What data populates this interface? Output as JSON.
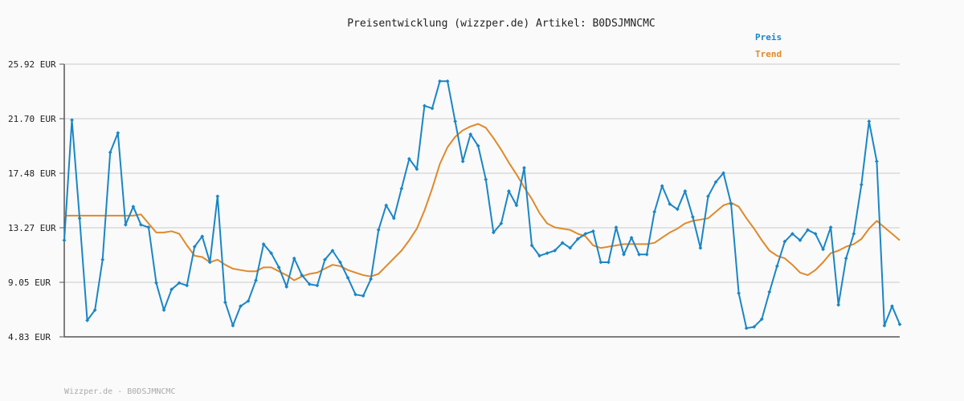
{
  "chart_data": {
    "type": "line",
    "title": "Preisentwicklung (wizzper.de) Artikel: B0DSJMNCMC",
    "xlabel": "",
    "ylabel": "",
    "ylim": [
      4.83,
      25.92
    ],
    "y_ticks": [
      "25.92 EUR",
      "21.70 EUR",
      "17.48 EUR",
      "13.27 EUR",
      "9.05 EUR",
      "4.83 EUR"
    ],
    "grid": true,
    "legend_position": "top-right",
    "series": [
      {
        "name": "Preis",
        "color": "#1a86c6",
        "marker": "diamond",
        "values": [
          12.3,
          21.6,
          14.0,
          6.1,
          6.9,
          10.8,
          19.1,
          20.6,
          13.5,
          14.9,
          13.5,
          13.3,
          9.0,
          6.9,
          8.5,
          9.0,
          8.8,
          11.8,
          12.6,
          10.6,
          15.7,
          7.5,
          5.7,
          7.2,
          7.6,
          9.2,
          12.0,
          11.3,
          10.2,
          8.7,
          10.9,
          9.6,
          8.9,
          8.8,
          10.8,
          11.5,
          10.6,
          9.4,
          8.1,
          8.0,
          9.3,
          13.1,
          15.0,
          14.0,
          16.3,
          18.6,
          17.8,
          22.7,
          22.5,
          24.6,
          24.6,
          21.5,
          18.4,
          20.5,
          19.6,
          17.0,
          12.9,
          13.6,
          16.1,
          15.0,
          17.9,
          11.9,
          11.1,
          11.3,
          11.5,
          12.1,
          11.7,
          12.4,
          12.8,
          13.0,
          10.6,
          10.6,
          13.3,
          11.2,
          12.5,
          11.2,
          11.2,
          14.5,
          16.5,
          15.1,
          14.7,
          16.1,
          14.1,
          11.7,
          15.7,
          16.8,
          17.5,
          15.1,
          8.2,
          5.5,
          5.6,
          6.2,
          8.3,
          10.3,
          12.2,
          12.8,
          12.3,
          13.1,
          12.8,
          11.6,
          13.3,
          7.3,
          10.9,
          12.8,
          16.6,
          21.5,
          18.4,
          5.7,
          7.2,
          5.8
        ]
      },
      {
        "name": "Trend",
        "color": "#e0892a",
        "values": [
          14.2,
          14.2,
          14.2,
          14.2,
          14.2,
          14.2,
          14.2,
          14.2,
          14.2,
          14.2,
          14.3,
          13.6,
          12.9,
          12.9,
          13.0,
          12.8,
          11.9,
          11.1,
          11.0,
          10.6,
          10.8,
          10.4,
          10.1,
          10.0,
          9.9,
          9.9,
          10.2,
          10.2,
          9.9,
          9.6,
          9.2,
          9.5,
          9.7,
          9.8,
          10.1,
          10.4,
          10.3,
          10.0,
          9.8,
          9.6,
          9.5,
          9.7,
          10.3,
          10.9,
          11.5,
          12.3,
          13.2,
          14.6,
          16.3,
          18.2,
          19.5,
          20.3,
          20.8,
          21.1,
          21.3,
          21.0,
          20.2,
          19.3,
          18.3,
          17.4,
          16.4,
          15.5,
          14.4,
          13.6,
          13.3,
          13.2,
          13.1,
          12.8,
          12.6,
          11.9,
          11.7,
          11.8,
          11.9,
          12.0,
          12.0,
          12.0,
          12.0,
          12.1,
          12.5,
          12.9,
          13.2,
          13.6,
          13.8,
          13.9,
          14.0,
          14.5,
          15.0,
          15.2,
          14.9,
          14.0,
          13.2,
          12.3,
          11.5,
          11.1,
          10.9,
          10.4,
          9.8,
          9.6,
          10.0,
          10.6,
          11.3,
          11.5,
          11.8,
          12.0,
          12.4,
          13.2,
          13.8,
          13.3,
          12.8,
          12.3
        ]
      }
    ]
  },
  "legend": {
    "preis_label": "Preis",
    "trend_label": "Trend"
  },
  "footer": {
    "text": "Wizzper.de - B0DSJMNCMC"
  },
  "colors": {
    "preis": "#1a86c6",
    "trend": "#e0892a",
    "title": "#222222",
    "grid": "#e2e2e2"
  }
}
